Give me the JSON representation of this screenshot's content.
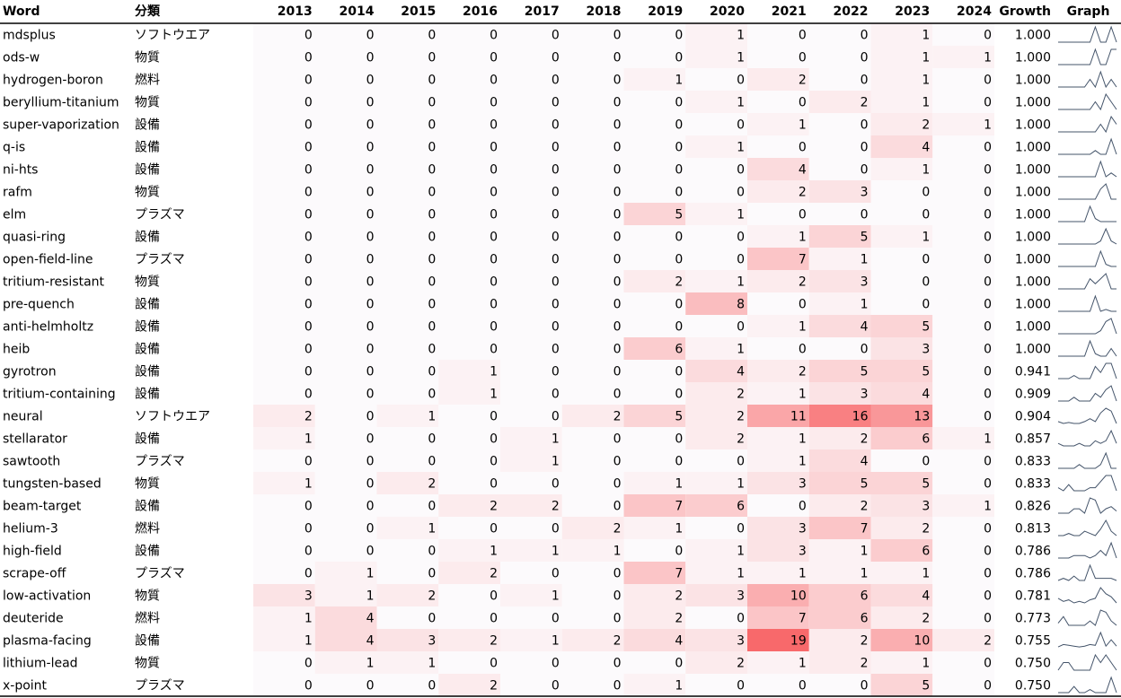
{
  "table": {
    "columns": [
      "Word",
      "分類",
      "2013",
      "2014",
      "2015",
      "2016",
      "2017",
      "2018",
      "2019",
      "2020",
      "2021",
      "2022",
      "2023",
      "2024",
      "Growth",
      "Graph"
    ],
    "rows": [
      {
        "word": "mdsplus",
        "category": "ソフトウエア",
        "counts": [
          0,
          0,
          0,
          0,
          0,
          0,
          0,
          1,
          0,
          0,
          1,
          0
        ],
        "growth": "1.000"
      },
      {
        "word": "ods-w",
        "category": "物質",
        "counts": [
          0,
          0,
          0,
          0,
          0,
          0,
          0,
          1,
          0,
          0,
          1,
          1
        ],
        "growth": "1.000"
      },
      {
        "word": "hydrogen-boron",
        "category": "燃料",
        "counts": [
          0,
          0,
          0,
          0,
          0,
          0,
          1,
          0,
          2,
          0,
          1,
          0
        ],
        "growth": "1.000"
      },
      {
        "word": "beryllium-titanium",
        "category": "物質",
        "counts": [
          0,
          0,
          0,
          0,
          0,
          0,
          0,
          1,
          0,
          2,
          1,
          0
        ],
        "growth": "1.000"
      },
      {
        "word": "super-vaporization",
        "category": "設備",
        "counts": [
          0,
          0,
          0,
          0,
          0,
          0,
          0,
          0,
          1,
          0,
          2,
          1
        ],
        "growth": "1.000"
      },
      {
        "word": "q-is",
        "category": "設備",
        "counts": [
          0,
          0,
          0,
          0,
          0,
          0,
          0,
          1,
          0,
          0,
          4,
          0
        ],
        "growth": "1.000"
      },
      {
        "word": "ni-hts",
        "category": "設備",
        "counts": [
          0,
          0,
          0,
          0,
          0,
          0,
          0,
          0,
          4,
          0,
          1,
          0
        ],
        "growth": "1.000"
      },
      {
        "word": "rafm",
        "category": "物質",
        "counts": [
          0,
          0,
          0,
          0,
          0,
          0,
          0,
          0,
          2,
          3,
          0,
          0
        ],
        "growth": "1.000"
      },
      {
        "word": "elm",
        "category": "プラズマ",
        "counts": [
          0,
          0,
          0,
          0,
          0,
          0,
          5,
          1,
          0,
          0,
          0,
          0
        ],
        "growth": "1.000"
      },
      {
        "word": "quasi-ring",
        "category": "設備",
        "counts": [
          0,
          0,
          0,
          0,
          0,
          0,
          0,
          0,
          1,
          5,
          1,
          0
        ],
        "growth": "1.000"
      },
      {
        "word": "open-field-line",
        "category": "プラズマ",
        "counts": [
          0,
          0,
          0,
          0,
          0,
          0,
          0,
          0,
          7,
          1,
          0,
          0
        ],
        "growth": "1.000"
      },
      {
        "word": "tritium-resistant",
        "category": "物質",
        "counts": [
          0,
          0,
          0,
          0,
          0,
          0,
          2,
          1,
          2,
          3,
          0,
          0
        ],
        "growth": "1.000"
      },
      {
        "word": "pre-quench",
        "category": "設備",
        "counts": [
          0,
          0,
          0,
          0,
          0,
          0,
          0,
          8,
          0,
          1,
          0,
          0
        ],
        "growth": "1.000"
      },
      {
        "word": "anti-helmholtz",
        "category": "設備",
        "counts": [
          0,
          0,
          0,
          0,
          0,
          0,
          0,
          0,
          1,
          4,
          5,
          0
        ],
        "growth": "1.000"
      },
      {
        "word": "heib",
        "category": "設備",
        "counts": [
          0,
          0,
          0,
          0,
          0,
          0,
          6,
          1,
          0,
          0,
          3,
          0
        ],
        "growth": "1.000"
      },
      {
        "word": "gyrotron",
        "category": "設備",
        "counts": [
          0,
          0,
          0,
          1,
          0,
          0,
          0,
          4,
          2,
          5,
          5,
          0
        ],
        "growth": "0.941"
      },
      {
        "word": "tritium-containing",
        "category": "設備",
        "counts": [
          0,
          0,
          0,
          1,
          0,
          0,
          0,
          2,
          1,
          3,
          4,
          0
        ],
        "growth": "0.909"
      },
      {
        "word": "neural",
        "category": "ソフトウエア",
        "counts": [
          2,
          0,
          1,
          0,
          0,
          2,
          5,
          2,
          11,
          16,
          13,
          0
        ],
        "growth": "0.904"
      },
      {
        "word": "stellarator",
        "category": "設備",
        "counts": [
          1,
          0,
          0,
          0,
          1,
          0,
          0,
          2,
          1,
          2,
          6,
          1
        ],
        "growth": "0.857"
      },
      {
        "word": "sawtooth",
        "category": "プラズマ",
        "counts": [
          0,
          0,
          0,
          0,
          1,
          0,
          0,
          0,
          1,
          4,
          0,
          0
        ],
        "growth": "0.833"
      },
      {
        "word": "tungsten-based",
        "category": "物質",
        "counts": [
          1,
          0,
          2,
          0,
          0,
          0,
          1,
          1,
          3,
          5,
          5,
          0
        ],
        "growth": "0.833"
      },
      {
        "word": "beam-target",
        "category": "設備",
        "counts": [
          0,
          0,
          0,
          2,
          2,
          0,
          7,
          6,
          0,
          2,
          3,
          1
        ],
        "growth": "0.826"
      },
      {
        "word": "helium-3",
        "category": "燃料",
        "counts": [
          0,
          0,
          1,
          0,
          0,
          2,
          1,
          0,
          3,
          7,
          2,
          0
        ],
        "growth": "0.813"
      },
      {
        "word": "high-field",
        "category": "設備",
        "counts": [
          0,
          0,
          0,
          1,
          1,
          1,
          0,
          1,
          3,
          1,
          6,
          0
        ],
        "growth": "0.786"
      },
      {
        "word": "scrape-off",
        "category": "プラズマ",
        "counts": [
          0,
          1,
          0,
          2,
          0,
          0,
          7,
          1,
          1,
          1,
          1,
          0
        ],
        "growth": "0.786"
      },
      {
        "word": "low-activation",
        "category": "物質",
        "counts": [
          3,
          1,
          2,
          0,
          1,
          0,
          2,
          3,
          10,
          6,
          4,
          0
        ],
        "growth": "0.781"
      },
      {
        "word": "deuteride",
        "category": "燃料",
        "counts": [
          1,
          4,
          0,
          0,
          0,
          0,
          2,
          0,
          7,
          6,
          2,
          0
        ],
        "growth": "0.773"
      },
      {
        "word": "plasma-facing",
        "category": "設備",
        "counts": [
          1,
          4,
          3,
          2,
          1,
          2,
          4,
          3,
          19,
          2,
          10,
          2
        ],
        "growth": "0.755"
      },
      {
        "word": "lithium-lead",
        "category": "物質",
        "counts": [
          0,
          1,
          1,
          0,
          0,
          0,
          0,
          2,
          1,
          2,
          1,
          0
        ],
        "growth": "0.750"
      },
      {
        "word": "x-point",
        "category": "プラズマ",
        "counts": [
          0,
          0,
          0,
          2,
          0,
          0,
          1,
          0,
          0,
          0,
          5,
          0
        ],
        "growth": "0.750"
      }
    ]
  }
}
